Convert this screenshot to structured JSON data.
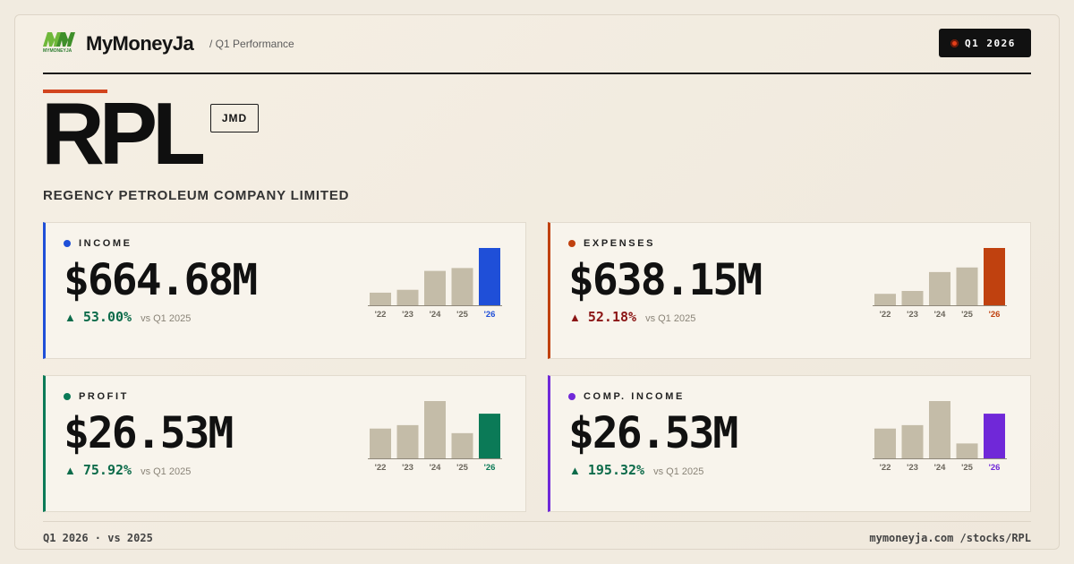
{
  "brand": {
    "name": "MyMoneyJa",
    "logo_text": "MYMONEYJA",
    "subtitle": "/ Q1 Performance",
    "period_badge": "Q1 2026"
  },
  "stock": {
    "ticker": "RPL",
    "currency": "JMD",
    "company": "REGENCY PETROLEUM COMPANY LIMITED"
  },
  "cards": [
    {
      "label": "INCOME",
      "value": "$664.68M",
      "change_arrow": "▲",
      "change": "53.00%",
      "change_note": "vs Q1 2025",
      "accent": "#1f4fd8",
      "change_color": "#0c6b4a"
    },
    {
      "label": "EXPENSES",
      "value": "$638.15M",
      "change_arrow": "▲",
      "change": "52.18%",
      "change_note": "vs Q1 2025",
      "accent": "#c0410f",
      "change_color": "#8b1515"
    },
    {
      "label": "PROFIT",
      "value": "$26.53M",
      "change_arrow": "▲",
      "change": "75.92%",
      "change_note": "vs Q1 2025",
      "accent": "#0b7a57",
      "change_color": "#0c6b4a"
    },
    {
      "label": "COMP. INCOME",
      "value": "$26.53M",
      "change_arrow": "▲",
      "change": "195.32%",
      "change_note": "vs Q1 2025",
      "accent": "#7028d8",
      "change_color": "#0c6b4a"
    }
  ],
  "chart_data": [
    {
      "type": "bar",
      "categories": [
        "'22",
        "'23",
        "'24",
        "'25",
        "'26"
      ],
      "values": [
        0.22,
        0.27,
        0.6,
        0.65,
        1.0
      ],
      "highlight_index": 4,
      "bar_color": "#c4bca8",
      "highlight_color": "#1f4fd8"
    },
    {
      "type": "bar",
      "categories": [
        "'22",
        "'23",
        "'24",
        "'25",
        "'26"
      ],
      "values": [
        0.2,
        0.25,
        0.58,
        0.66,
        1.0
      ],
      "highlight_index": 4,
      "bar_color": "#c4bca8",
      "highlight_color": "#c0410f"
    },
    {
      "type": "bar",
      "categories": [
        "'22",
        "'23",
        "'24",
        "'25",
        "'26"
      ],
      "values": [
        0.52,
        0.58,
        1.0,
        0.44,
        0.78
      ],
      "highlight_index": 4,
      "bar_color": "#c4bca8",
      "highlight_color": "#0b7a57"
    },
    {
      "type": "bar",
      "categories": [
        "'22",
        "'23",
        "'24",
        "'25",
        "'26"
      ],
      "values": [
        0.52,
        0.58,
        1.0,
        0.26,
        0.78
      ],
      "highlight_index": 4,
      "bar_color": "#c4bca8",
      "highlight_color": "#7028d8"
    }
  ],
  "footer": {
    "left": "Q1 2026 · vs 2025",
    "right": "mymoneyja.com /stocks/RPL"
  }
}
